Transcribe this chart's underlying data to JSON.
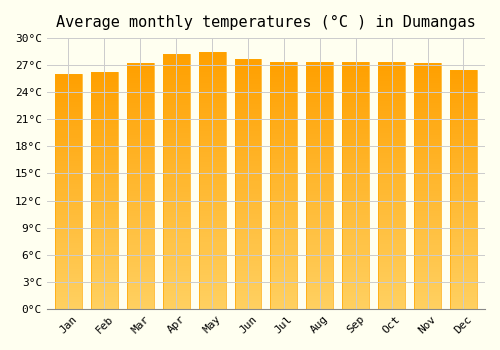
{
  "title": "Average monthly temperatures (°C ) in Dumangas",
  "months": [
    "Jan",
    "Feb",
    "Mar",
    "Apr",
    "May",
    "Jun",
    "Jul",
    "Aug",
    "Sep",
    "Oct",
    "Nov",
    "Dec"
  ],
  "temperatures": [
    26.0,
    26.2,
    27.2,
    28.2,
    28.5,
    27.7,
    27.3,
    27.3,
    27.3,
    27.4,
    27.2,
    26.5
  ],
  "bar_color_top": "#FFA500",
  "bar_color_bottom": "#FFD060",
  "ylim": [
    0,
    30
  ],
  "yticks": [
    0,
    3,
    6,
    9,
    12,
    15,
    18,
    21,
    24,
    27,
    30
  ],
  "ytick_labels": [
    "0°C",
    "3°C",
    "6°C",
    "9°C",
    "12°C",
    "15°C",
    "18°C",
    "21°C",
    "24°C",
    "27°C",
    "30°C"
  ],
  "bg_color": "#fffff0",
  "grid_color": "#cccccc",
  "title_fontsize": 11,
  "tick_fontsize": 8,
  "bar_edge_color": "#FFA500"
}
